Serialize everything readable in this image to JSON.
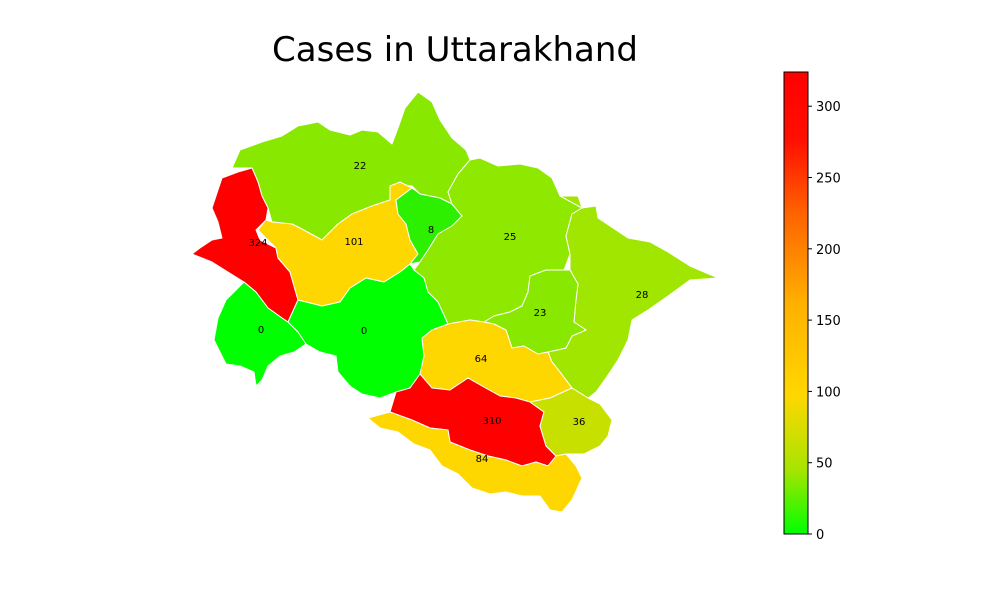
{
  "title": "Cases in Uttarakhand",
  "colorbar": {
    "min": 0,
    "max": 324,
    "ticks": [
      0,
      50,
      100,
      150,
      200,
      250,
      300
    ],
    "tick_labels": [
      "0",
      "50",
      "100",
      "150",
      "200",
      "250",
      "300"
    ],
    "colors": {
      "low": "#00ff00",
      "mid": "#ffd700",
      "high": "#ff0000"
    }
  },
  "districts": [
    {
      "id": "uttarkashi",
      "value": 22,
      "label": "22",
      "color": "#88e800"
    },
    {
      "id": "dehradun",
      "value": 324,
      "label": "324",
      "color": "#ff0000"
    },
    {
      "id": "tehri-garhwal",
      "value": 101,
      "label": "101",
      "color": "#ffd700"
    },
    {
      "id": "rudraprayag",
      "value": 8,
      "label": "8",
      "color": "#2cf000"
    },
    {
      "id": "chamoli",
      "value": 25,
      "label": "25",
      "color": "#8ee800"
    },
    {
      "id": "pithoragarh",
      "value": 28,
      "label": "28",
      "color": "#a0e600"
    },
    {
      "id": "bageshwar",
      "value": 23,
      "label": "23",
      "color": "#88e800"
    },
    {
      "id": "haridwar",
      "value": 0,
      "label": "0",
      "color": "#00ff00"
    },
    {
      "id": "pauri-garhwal",
      "value": 0,
      "label": "0",
      "color": "#00ff00"
    },
    {
      "id": "almora",
      "value": 64,
      "label": "64",
      "color": "#ffd700"
    },
    {
      "id": "nainital",
      "value": 310,
      "label": "310",
      "color": "#ff0000"
    },
    {
      "id": "champawat",
      "value": 36,
      "label": "36",
      "color": "#c8e000"
    },
    {
      "id": "udham-singh-nagar",
      "value": 84,
      "label": "84",
      "color": "#ffd700"
    }
  ]
}
